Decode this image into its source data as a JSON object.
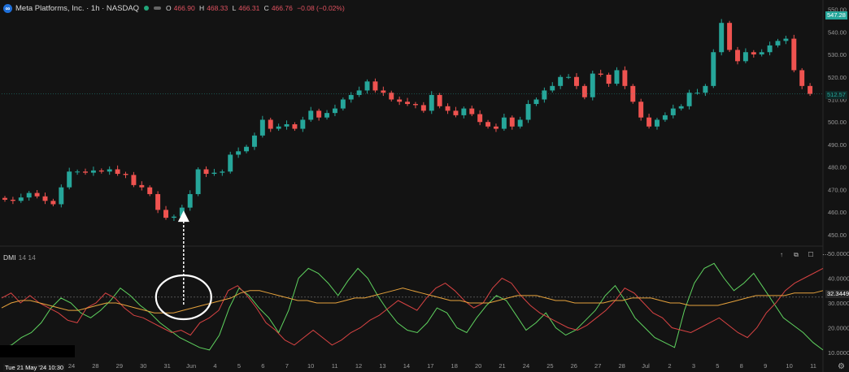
{
  "header": {
    "logo_glyph": "∞",
    "title": "Meta Platforms, Inc. · 1h · NASDAQ",
    "ohlc": {
      "o_label": "O",
      "o": "466.90",
      "h_label": "H",
      "h": "468.33",
      "l_label": "L",
      "l": "466.31",
      "c_label": "C",
      "c": "466.76",
      "chg": "−0.08 (−0.02%)"
    }
  },
  "indicator": {
    "name": "DMI",
    "params": "14 14",
    "buttons": [
      "↑",
      "⧉",
      "☐",
      "⋯"
    ]
  },
  "price_tags": {
    "top_tag": "547.28",
    "current": "512.57",
    "dmi_value": "32.3449"
  },
  "colors": {
    "up": "#26a69a",
    "down": "#ef5350",
    "plus_di": "#5fd35f",
    "minus_di": "#d84343",
    "adx": "#e6a23c",
    "bg": "#131313"
  },
  "crosshair_time": "Tue 21 May '24   10:30",
  "chart_data": [
    {
      "type": "candlestick",
      "title": "",
      "y_ticks": [
        450,
        460,
        470,
        480,
        490,
        500,
        510,
        520,
        530,
        540,
        550
      ],
      "y_tick_labels": [
        "450.00",
        "460.00",
        "470.00",
        "480.00",
        "490.00",
        "500.00",
        "510.00",
        "520.00",
        "530.00",
        "540.00",
        "550.00"
      ],
      "ylim": [
        446,
        552
      ],
      "x_tick_labels": [
        "24",
        "28",
        "29",
        "30",
        "31",
        "Jun",
        "4",
        "5",
        "6",
        "7",
        "10",
        "11",
        "12",
        "13",
        "14",
        "17",
        "18",
        "20",
        "21",
        "24",
        "25",
        "26",
        "27",
        "28",
        "Jul",
        "2",
        "3",
        "5",
        "8",
        "9",
        "10",
        "11"
      ],
      "close": [
        465.5,
        465,
        466.5,
        468.5,
        467,
        465,
        463.5,
        471,
        478,
        478,
        477.5,
        478.5,
        478,
        479,
        477,
        476.5,
        472,
        471,
        468,
        461,
        457.5,
        458,
        462,
        468,
        479,
        477,
        477.5,
        478,
        485.5,
        487,
        489,
        494,
        501,
        497,
        498,
        499,
        497,
        501,
        505,
        502,
        504,
        506,
        510,
        512,
        514,
        518,
        514,
        513,
        510,
        509,
        508,
        507.5,
        505,
        512,
        507,
        505,
        503,
        506,
        503.5,
        500,
        498,
        497,
        502,
        498,
        501,
        508,
        510,
        514,
        516,
        520,
        520,
        516,
        511,
        521.5,
        521,
        517,
        523,
        516,
        509,
        502,
        498,
        501,
        503,
        506,
        507,
        513,
        513,
        516,
        531,
        544,
        532,
        527,
        531,
        530,
        531,
        534,
        536,
        537,
        523,
        516,
        512.5
      ],
      "annotation": "white dashed arrow pointing up to the candle near 31 / Jun"
    },
    {
      "type": "line",
      "title": "DMI",
      "y_ticks": [
        10,
        20,
        30,
        40,
        50
      ],
      "y_tick_labels": [
        "10.0000",
        "20.0000",
        "30.0000",
        "40.0000",
        "50.0000"
      ],
      "ylim": [
        8,
        52
      ],
      "reference_line": 32.3449,
      "series": [
        {
          "values": [
            12,
            13,
            16,
            18,
            22,
            28,
            32,
            30,
            26,
            24,
            27,
            31,
            36,
            33,
            29,
            26,
            22,
            19,
            16,
            14,
            12,
            11,
            17,
            28,
            36,
            33,
            28,
            24,
            18,
            27,
            40,
            44,
            42,
            38,
            33,
            39,
            44,
            40,
            33,
            27,
            22,
            19,
            18,
            22,
            28,
            26,
            20,
            18,
            24,
            29,
            33,
            31,
            25,
            19,
            22,
            26,
            20,
            17,
            19,
            23,
            27,
            33,
            37,
            31,
            24,
            20,
            16,
            14,
            12,
            27,
            38,
            44,
            46,
            40,
            35,
            38,
            42,
            36,
            30,
            24,
            21,
            18,
            14,
            11
          ]
        },
        {
          "values": [
            32,
            34,
            30,
            33,
            30,
            28,
            26,
            23,
            22,
            28,
            30,
            34,
            32,
            28,
            25,
            24,
            22,
            20,
            18,
            19,
            17,
            22,
            24,
            27,
            35,
            37,
            33,
            28,
            22,
            19,
            15,
            13,
            16,
            19,
            16,
            13,
            15,
            18,
            20,
            23,
            25,
            28,
            31,
            29,
            27,
            32,
            36,
            38,
            35,
            31,
            28,
            30,
            36,
            40,
            38,
            33,
            29,
            26,
            24,
            22,
            20,
            19,
            21,
            24,
            27,
            31,
            36,
            34,
            30,
            26,
            24,
            20,
            19,
            18,
            20,
            22,
            24,
            21,
            18,
            16,
            20,
            26,
            30,
            35,
            38,
            40,
            42,
            44
          ]
        },
        {
          "values": [
            28,
            30,
            31,
            31,
            30,
            29,
            28,
            27,
            27,
            28,
            29,
            30,
            30,
            29,
            28,
            27,
            26,
            26,
            26,
            27,
            28,
            29,
            30,
            31,
            32,
            34,
            35,
            35,
            34,
            33,
            32,
            31,
            31,
            30,
            30,
            30,
            31,
            32,
            32,
            33,
            34,
            35,
            36,
            35,
            34,
            33,
            32,
            31,
            31,
            30,
            30,
            30,
            31,
            32,
            33,
            33,
            33,
            32,
            31,
            31,
            30,
            30,
            30,
            30,
            31,
            31,
            32,
            32,
            32,
            31,
            30,
            30,
            29,
            29,
            29,
            29,
            30,
            31,
            32,
            33,
            33,
            33,
            33,
            34,
            34,
            34,
            35
          ]
        }
      ]
    }
  ]
}
